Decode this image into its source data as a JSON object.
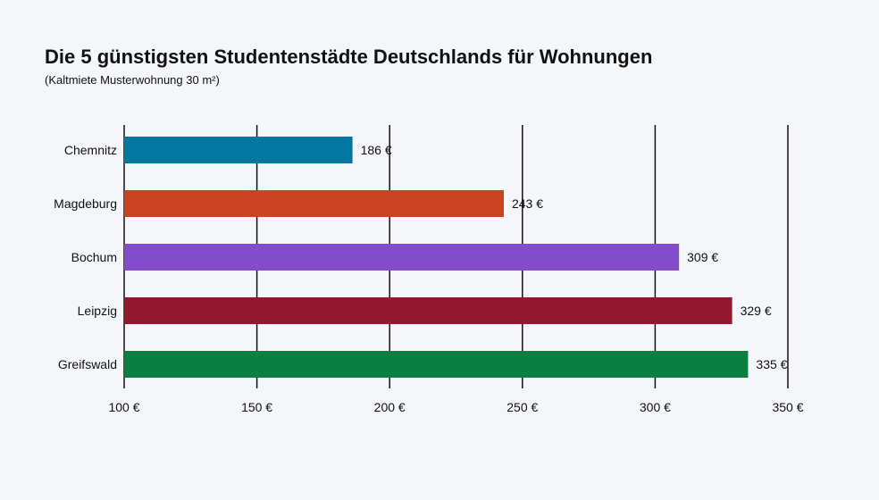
{
  "chart_data": {
    "type": "bar",
    "orientation": "horizontal",
    "title": "Die 5 günstigsten Studentenstädte Deutschlands für Wohnungen",
    "subtitle": "(Kaltmiete Musterwohnung 30 m²)",
    "categories": [
      "Chemnitz",
      "Magdeburg",
      "Bochum",
      "Leipzig",
      "Greifswald"
    ],
    "values": [
      186,
      243,
      309,
      329,
      335
    ],
    "data_labels": [
      "186 €",
      "243 €",
      "309 €",
      "329 €",
      "335 €"
    ],
    "colors": [
      "#0277a1",
      "#cb4221",
      "#834ccc",
      "#93172e",
      "#0a8040"
    ],
    "xlim": [
      100,
      350
    ],
    "xticks": [
      100,
      150,
      200,
      250,
      300,
      350
    ],
    "xtick_labels": [
      "100 €",
      "150 €",
      "200 €",
      "250 €",
      "300 €",
      "350 €"
    ],
    "grid": true,
    "xlabel": "",
    "ylabel": ""
  }
}
